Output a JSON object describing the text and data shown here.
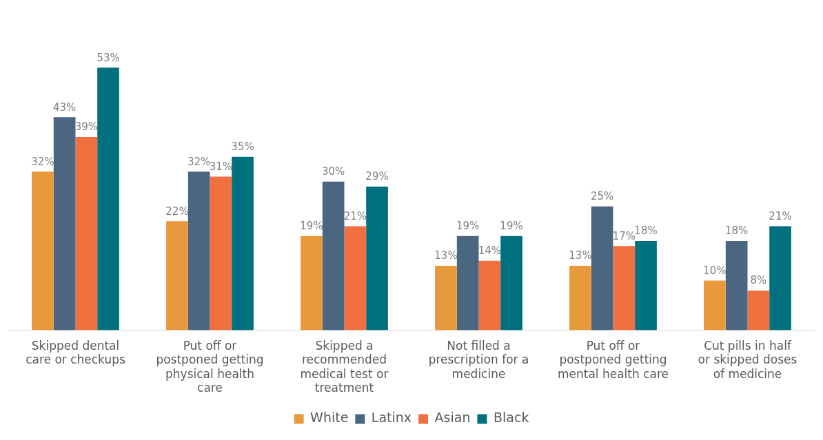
{
  "chart_data": {
    "type": "bar",
    "categories": [
      "Skipped dental care or checkups",
      "Put off or postponed getting physical health care",
      "Skipped a recommended medical test or treatment",
      "Not filled a prescription for a medicine",
      "Put off or postponed getting mental health care",
      "Cut pills in half or skipped doses of medicine"
    ],
    "series": [
      {
        "name": "White",
        "color": "#e8993b",
        "values": [
          32,
          22,
          19,
          13,
          13,
          10
        ],
        "value_labels": [
          "32%",
          "22%",
          "19%",
          "13%",
          "13%",
          "10%"
        ]
      },
      {
        "name": "Latinx",
        "color": "#4a6680",
        "values": [
          43,
          32,
          30,
          19,
          25,
          18
        ],
        "value_labels": [
          "43%",
          "32%",
          "30%",
          "19%",
          "25%",
          "18%"
        ]
      },
      {
        "name": "Asian",
        "color": "#f07040",
        "values": [
          39,
          31,
          21,
          14,
          17,
          8
        ],
        "value_labels": [
          "39%",
          "31%",
          "21%",
          "14%",
          "17%",
          "8%"
        ]
      },
      {
        "name": "Black",
        "color": "#00707f",
        "values": [
          53,
          35,
          29,
          19,
          18,
          21
        ],
        "value_labels": [
          "53%",
          "35%",
          "29%",
          "19%",
          "18%",
          "21%"
        ]
      }
    ],
    "legend": "bottom",
    "grid": false
  }
}
